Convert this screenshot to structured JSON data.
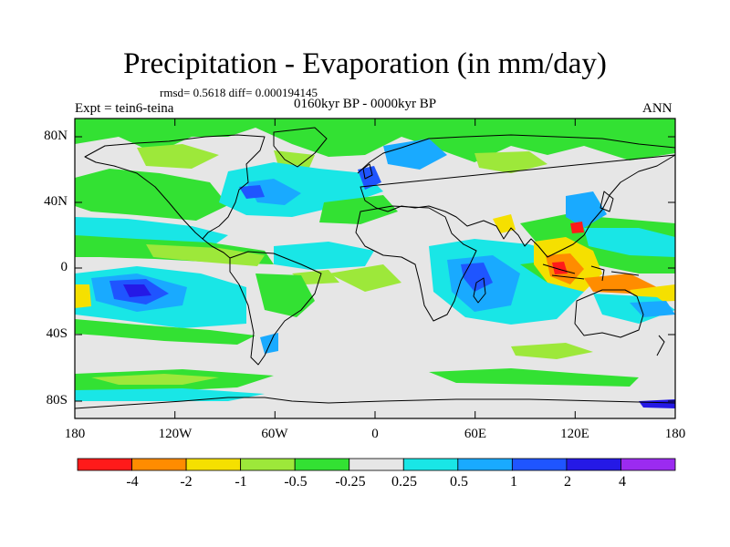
{
  "map": {
    "title": "Precipitation - Evaporation (in mm/day)",
    "stats": "rmsd= 0.5618 diff= 0.000194145",
    "period": "0160kyr BP - 0000kyr BP",
    "experiment": "Expt = tein6-teina",
    "season": "ANN",
    "lat_labels": [
      "80N",
      "40N",
      "0",
      "40S",
      "80S"
    ],
    "lon_labels": [
      "180",
      "120W",
      "60W",
      "0",
      "60E",
      "120E",
      "180"
    ]
  },
  "colorbar": {
    "labels": [
      "-4",
      "-2",
      "-1",
      "-0.5",
      "-0.25",
      "0.25",
      "0.5",
      "1",
      "2",
      "4"
    ],
    "colors": [
      "#ff1a1a",
      "#ff8c00",
      "#f5e000",
      "#9de83a",
      "#33e133",
      "#e6e6e6",
      "#19e6e6",
      "#19aaff",
      "#1f55ff",
      "#2519e6",
      "#9b2bf0"
    ]
  },
  "palette": {
    "land": "#e6e6e6",
    "coast": "#000000"
  }
}
